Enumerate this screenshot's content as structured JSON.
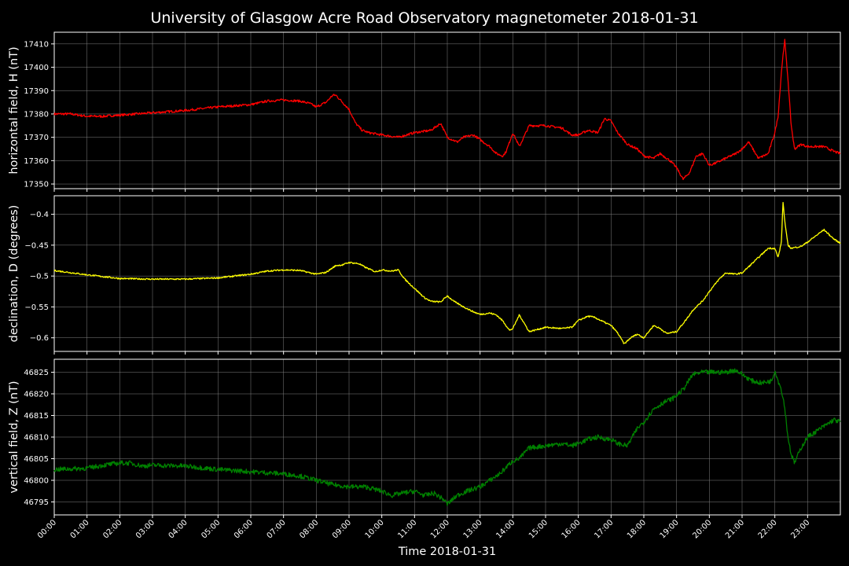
{
  "chart_data": [
    {
      "type": "line",
      "title": "University of Glasgow Acre Road Observatory magnetometer 2018-01-31",
      "ylabel": "horizontal field, H (nT)",
      "ylim": [
        17348,
        17415
      ],
      "yticks": [
        17350,
        17360,
        17370,
        17380,
        17390,
        17400,
        17410
      ],
      "grid": true,
      "color": "#ff0000",
      "noise": 0.5,
      "series": [
        {
          "x": [
            0,
            0.5,
            1.0,
            1.5,
            2.0,
            3.0,
            4.0,
            5.0,
            6.0,
            6.5,
            7.0,
            7.5,
            7.8,
            8.0,
            8.3,
            8.5,
            8.6,
            8.8,
            9.0,
            9.2,
            9.4,
            9.6,
            10.0,
            10.5,
            11.0,
            11.5,
            11.8,
            12.0,
            12.3,
            12.5,
            12.8,
            13.0,
            13.3,
            13.5,
            13.7,
            13.8,
            14.0,
            14.2,
            14.5,
            15.0,
            15.5,
            15.8,
            16.0,
            16.3,
            16.6,
            16.8,
            17.0,
            17.2,
            17.5,
            17.8,
            18.0,
            18.3,
            18.5,
            18.8,
            19.0,
            19.2,
            19.4,
            19.6,
            19.8,
            20.0,
            20.2,
            20.5,
            20.8,
            21.0,
            21.2,
            21.5,
            21.8,
            22.0,
            22.1,
            22.2,
            22.3,
            22.4,
            22.5,
            22.6,
            22.8,
            23.0,
            23.2,
            23.5,
            23.8,
            24.0
          ],
          "y": [
            17380,
            17380,
            17379,
            17379,
            17379.5,
            17380.5,
            17381.5,
            17383,
            17384,
            17385.5,
            17386,
            17385.5,
            17384.5,
            17383,
            17385,
            17388,
            17388,
            17385,
            17382,
            17376,
            17373,
            17372,
            17371,
            17370,
            17372,
            17373,
            17376,
            17370,
            17368,
            17370,
            17371,
            17369,
            17366,
            17363,
            17362,
            17364,
            17372,
            17366,
            17375,
            17375,
            17374,
            17371,
            17371,
            17373,
            17372,
            17378,
            17377,
            17372,
            17367,
            17365,
            17362,
            17361,
            17363,
            17360,
            17357,
            17352,
            17355,
            17362,
            17363,
            17358,
            17359,
            17361,
            17363,
            17365,
            17368,
            17361,
            17363,
            17372,
            17379,
            17398,
            17412,
            17395,
            17375,
            17365,
            17367,
            17366,
            17366,
            17366,
            17364,
            17363
          ]
        }
      ]
    },
    {
      "type": "line",
      "ylabel": "declination, D (degrees)",
      "ylim": [
        -0.622,
        -0.37
      ],
      "yticks": [
        -0.6,
        -0.55,
        -0.5,
        -0.45,
        -0.4
      ],
      "grid": true,
      "color": "#ffff00",
      "noise": 0.0012,
      "series": [
        {
          "x": [
            0,
            1.0,
            2.0,
            3.0,
            4.0,
            5.0,
            6.0,
            6.5,
            7.0,
            7.5,
            8.0,
            8.3,
            8.6,
            8.8,
            9.0,
            9.3,
            9.5,
            9.8,
            10.0,
            10.3,
            10.5,
            10.7,
            11.0,
            11.3,
            11.5,
            11.8,
            12.0,
            12.2,
            12.5,
            12.8,
            13.0,
            13.3,
            13.5,
            13.7,
            13.9,
            14.0,
            14.2,
            14.5,
            15.0,
            15.5,
            15.8,
            16.0,
            16.3,
            16.5,
            16.8,
            17.0,
            17.2,
            17.4,
            17.6,
            17.8,
            18.0,
            18.3,
            18.5,
            18.7,
            19.0,
            19.3,
            19.5,
            19.8,
            20.0,
            20.3,
            20.5,
            20.8,
            21.0,
            21.3,
            21.6,
            21.8,
            22.0,
            22.1,
            22.2,
            22.25,
            22.3,
            22.4,
            22.5,
            22.8,
            23.0,
            23.3,
            23.5,
            23.8,
            24.0
          ],
          "y": [
            -0.491,
            -0.498,
            -0.504,
            -0.505,
            -0.505,
            -0.503,
            -0.497,
            -0.492,
            -0.49,
            -0.491,
            -0.497,
            -0.494,
            -0.483,
            -0.482,
            -0.478,
            -0.48,
            -0.486,
            -0.493,
            -0.49,
            -0.492,
            -0.49,
            -0.505,
            -0.52,
            -0.535,
            -0.541,
            -0.542,
            -0.532,
            -0.541,
            -0.55,
            -0.558,
            -0.562,
            -0.56,
            -0.563,
            -0.573,
            -0.588,
            -0.585,
            -0.563,
            -0.59,
            -0.583,
            -0.585,
            -0.583,
            -0.572,
            -0.565,
            -0.567,
            -0.575,
            -0.58,
            -0.592,
            -0.61,
            -0.6,
            -0.594,
            -0.6,
            -0.58,
            -0.585,
            -0.593,
            -0.59,
            -0.57,
            -0.555,
            -0.54,
            -0.525,
            -0.505,
            -0.495,
            -0.497,
            -0.495,
            -0.48,
            -0.465,
            -0.455,
            -0.455,
            -0.47,
            -0.445,
            -0.38,
            -0.41,
            -0.45,
            -0.455,
            -0.452,
            -0.445,
            -0.433,
            -0.425,
            -0.44,
            -0.447
          ]
        }
      ]
    },
    {
      "type": "line",
      "xlabel": "Time 2018-01-31",
      "ylabel": "vertical field, Z (nT)",
      "ylim": [
        46792,
        46828
      ],
      "yticks": [
        46795,
        46800,
        46805,
        46810,
        46815,
        46820,
        46825
      ],
      "xlim": [
        0,
        24
      ],
      "xticks": [
        "00:00",
        "01:00",
        "02:00",
        "03:00",
        "04:00",
        "05:00",
        "06:00",
        "07:00",
        "08:00",
        "09:00",
        "10:00",
        "11:00",
        "12:00",
        "13:00",
        "14:00",
        "15:00",
        "16:00",
        "17:00",
        "18:00",
        "19:00",
        "20:00",
        "21:00",
        "22:00",
        "23:00"
      ],
      "grid": true,
      "color": "#008000",
      "noise": 0.55,
      "series": [
        {
          "x": [
            0,
            1.0,
            1.5,
            2.0,
            2.3,
            2.7,
            3.0,
            4.0,
            5.0,
            6.0,
            7.0,
            7.5,
            8.0,
            8.5,
            9.0,
            9.5,
            10.0,
            10.3,
            10.6,
            11.0,
            11.3,
            11.6,
            11.9,
            12.0,
            12.3,
            12.6,
            13.0,
            13.3,
            13.6,
            13.8,
            14.0,
            14.2,
            14.5,
            15.0,
            15.5,
            15.8,
            16.0,
            16.3,
            16.6,
            16.9,
            17.0,
            17.2,
            17.5,
            17.8,
            18.0,
            18.3,
            18.6,
            18.9,
            19.2,
            19.5,
            19.8,
            20.0,
            20.5,
            20.8,
            21.0,
            21.3,
            21.6,
            21.9,
            22.0,
            22.1,
            22.2,
            22.3,
            22.4,
            22.5,
            22.6,
            22.8,
            23.0,
            23.3,
            23.6,
            23.8,
            24.0
          ],
          "y": [
            46802.5,
            46802.8,
            46803.5,
            46804,
            46804,
            46803.3,
            46803.5,
            46803.3,
            46802.5,
            46802,
            46801.5,
            46801,
            46800,
            46799,
            46798.5,
            46798.5,
            46797.5,
            46796.5,
            46797,
            46797.5,
            46796.5,
            46797,
            46795.5,
            46794.5,
            46796.5,
            46797.5,
            46798.5,
            46800,
            46801.5,
            46803,
            46804.5,
            46805,
            46807.5,
            46808,
            46808.5,
            46808,
            46808.5,
            46809.5,
            46810,
            46809.5,
            46809.5,
            46808.5,
            46808,
            46812,
            46813.5,
            46816.5,
            46818,
            46819,
            46821,
            46824.5,
            46825,
            46825,
            46825,
            46825.5,
            46824.5,
            46823,
            46822.5,
            46823,
            46825.5,
            46823,
            46821,
            46817,
            46810,
            46806,
            46804,
            46807.5,
            46810,
            46811.5,
            46813,
            46814,
            46813.5
          ]
        }
      ]
    }
  ]
}
